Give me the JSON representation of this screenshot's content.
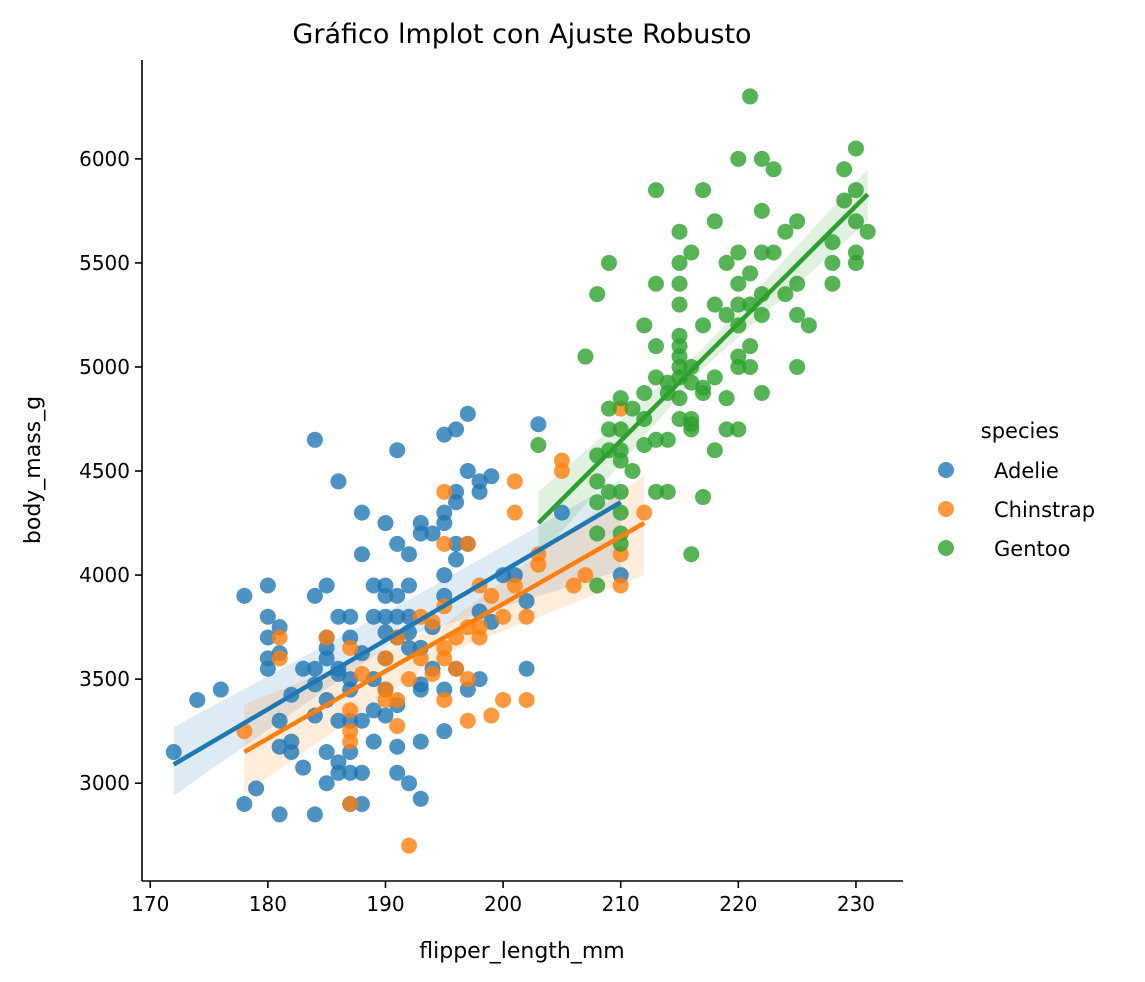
{
  "chart_data": {
    "type": "scatter",
    "title": "Gráfico lmplot con Ajuste Robusto",
    "xlabel": "flipper_length_mm",
    "ylabel": "body_mass_g",
    "xlim": [
      169.3,
      234
    ],
    "ylim": [
      2530,
      6475
    ],
    "xticks": [
      170,
      180,
      190,
      200,
      210,
      220,
      230
    ],
    "yticks": [
      3000,
      3500,
      4000,
      4500,
      5000,
      5500,
      6000
    ],
    "grid": false,
    "legend": {
      "title": "species",
      "placement": "right-center",
      "entries": [
        "Adelie",
        "Chinstrap",
        "Gentoo"
      ]
    },
    "series": [
      {
        "name": "Adelie",
        "color": "#1f77b4",
        "fit": {
          "x": [
            172,
            210
          ],
          "y": [
            3090,
            4350
          ]
        },
        "band": {
          "x": [
            172,
            191,
            210
          ],
          "lo": [
            2940,
            3690,
            4020
          ],
          "hi": [
            3270,
            3850,
            4460
          ]
        },
        "points": [
          [
            172,
            3150
          ],
          [
            174,
            3400
          ],
          [
            176,
            3450
          ],
          [
            178,
            3900
          ],
          [
            178,
            2900
          ],
          [
            179,
            2975
          ],
          [
            180,
            3950
          ],
          [
            180,
            3800
          ],
          [
            180,
            3700
          ],
          [
            180,
            3600
          ],
          [
            180,
            3550
          ],
          [
            181,
            3750
          ],
          [
            181,
            3625
          ],
          [
            181,
            3300
          ],
          [
            181,
            3175
          ],
          [
            181,
            2850
          ],
          [
            182,
            3425
          ],
          [
            182,
            3200
          ],
          [
            182,
            3150
          ],
          [
            183,
            3550
          ],
          [
            183,
            3075
          ],
          [
            184,
            4650
          ],
          [
            184,
            3900
          ],
          [
            184,
            3550
          ],
          [
            184,
            3475
          ],
          [
            184,
            3325
          ],
          [
            184,
            2850
          ],
          [
            185,
            3950
          ],
          [
            185,
            3700
          ],
          [
            185,
            3650
          ],
          [
            185,
            3600
          ],
          [
            185,
            3400
          ],
          [
            185,
            3150
          ],
          [
            185,
            3000
          ],
          [
            186,
            4450
          ],
          [
            186,
            3800
          ],
          [
            186,
            3550
          ],
          [
            186,
            3525
          ],
          [
            186,
            3300
          ],
          [
            186,
            3100
          ],
          [
            186,
            3050
          ],
          [
            187,
            3800
          ],
          [
            187,
            3700
          ],
          [
            187,
            3500
          ],
          [
            187,
            3450
          ],
          [
            187,
            3300
          ],
          [
            187,
            3150
          ],
          [
            187,
            3050
          ],
          [
            187,
            2900
          ],
          [
            188,
            4300
          ],
          [
            188,
            4100
          ],
          [
            188,
            3625
          ],
          [
            188,
            3300
          ],
          [
            188,
            3050
          ],
          [
            188,
            2900
          ],
          [
            189,
            3950
          ],
          [
            189,
            3800
          ],
          [
            189,
            3500
          ],
          [
            189,
            3350
          ],
          [
            189,
            3200
          ],
          [
            190,
            4250
          ],
          [
            190,
            3950
          ],
          [
            190,
            3900
          ],
          [
            190,
            3800
          ],
          [
            190,
            3725
          ],
          [
            190,
            3600
          ],
          [
            190,
            3450
          ],
          [
            190,
            3325
          ],
          [
            191,
            4600
          ],
          [
            191,
            4150
          ],
          [
            191,
            3900
          ],
          [
            191,
            3800
          ],
          [
            191,
            3700
          ],
          [
            191,
            3375
          ],
          [
            191,
            3175
          ],
          [
            191,
            3050
          ],
          [
            192,
            4100
          ],
          [
            192,
            3950
          ],
          [
            192,
            3800
          ],
          [
            192,
            3725
          ],
          [
            192,
            3650
          ],
          [
            192,
            3000
          ],
          [
            193,
            4250
          ],
          [
            193,
            4200
          ],
          [
            193,
            3650
          ],
          [
            193,
            3475
          ],
          [
            193,
            3450
          ],
          [
            193,
            3200
          ],
          [
            193,
            2925
          ],
          [
            194,
            4200
          ],
          [
            194,
            3750
          ],
          [
            194,
            3550
          ],
          [
            195,
            4675
          ],
          [
            195,
            4300
          ],
          [
            195,
            4250
          ],
          [
            195,
            4000
          ],
          [
            195,
            3900
          ],
          [
            195,
            3450
          ],
          [
            195,
            3250
          ],
          [
            196,
            4700
          ],
          [
            196,
            4400
          ],
          [
            196,
            4350
          ],
          [
            196,
            4150
          ],
          [
            196,
            4075
          ],
          [
            196,
            3550
          ],
          [
            197,
            4775
          ],
          [
            197,
            4500
          ],
          [
            197,
            4150
          ],
          [
            197,
            3450
          ],
          [
            198,
            4450
          ],
          [
            198,
            4400
          ],
          [
            198,
            3825
          ],
          [
            198,
            3500
          ],
          [
            199,
            4475
          ],
          [
            199,
            3775
          ],
          [
            200,
            4000
          ],
          [
            201,
            4000
          ],
          [
            202,
            3875
          ],
          [
            202,
            3550
          ],
          [
            203,
            4725
          ],
          [
            205,
            4300
          ],
          [
            210,
            4000
          ]
        ]
      },
      {
        "name": "Chinstrap",
        "color": "#ff7f0e",
        "fit": {
          "x": [
            178,
            212
          ],
          "y": [
            3150,
            4250
          ]
        },
        "band": {
          "x": [
            178,
            195,
            212
          ],
          "lo": [
            2950,
            3620,
            4000
          ],
          "hi": [
            3380,
            3760,
            4480
          ]
        },
        "points": [
          [
            178,
            3250
          ],
          [
            181,
            3700
          ],
          [
            181,
            3600
          ],
          [
            185,
            3700
          ],
          [
            187,
            3650
          ],
          [
            187,
            3350
          ],
          [
            187,
            3250
          ],
          [
            187,
            3200
          ],
          [
            187,
            2900
          ],
          [
            188,
            3525
          ],
          [
            190,
            3600
          ],
          [
            190,
            3450
          ],
          [
            190,
            3400
          ],
          [
            191,
            3700
          ],
          [
            191,
            3400
          ],
          [
            191,
            3275
          ],
          [
            192,
            3500
          ],
          [
            192,
            2700
          ],
          [
            193,
            3800
          ],
          [
            193,
            3600
          ],
          [
            194,
            3775
          ],
          [
            194,
            3525
          ],
          [
            195,
            4400
          ],
          [
            195,
            4150
          ],
          [
            195,
            3850
          ],
          [
            195,
            3650
          ],
          [
            195,
            3600
          ],
          [
            195,
            3400
          ],
          [
            196,
            3700
          ],
          [
            196,
            3550
          ],
          [
            197,
            4150
          ],
          [
            197,
            3750
          ],
          [
            197,
            3500
          ],
          [
            197,
            3300
          ],
          [
            198,
            3950
          ],
          [
            198,
            3750
          ],
          [
            198,
            3700
          ],
          [
            199,
            3900
          ],
          [
            199,
            3325
          ],
          [
            200,
            3800
          ],
          [
            200,
            3400
          ],
          [
            201,
            4450
          ],
          [
            201,
            4300
          ],
          [
            201,
            3950
          ],
          [
            202,
            3800
          ],
          [
            202,
            3400
          ],
          [
            203,
            4100
          ],
          [
            203,
            4050
          ],
          [
            205,
            4550
          ],
          [
            205,
            4500
          ],
          [
            206,
            3950
          ],
          [
            207,
            4000
          ],
          [
            210,
            4800
          ],
          [
            210,
            4100
          ],
          [
            210,
            3950
          ],
          [
            212,
            4300
          ]
        ]
      },
      {
        "name": "Gentoo",
        "color": "#2ca02c",
        "fit": {
          "x": [
            203,
            231
          ],
          "y": [
            4250,
            5830
          ]
        },
        "band": {
          "x": [
            203,
            217,
            231
          ],
          "lo": [
            4080,
            4990,
            5700
          ],
          "hi": [
            4400,
            5090,
            5950
          ]
        },
        "points": [
          [
            203,
            4625
          ],
          [
            207,
            5050
          ],
          [
            208,
            5350
          ],
          [
            208,
            4575
          ],
          [
            208,
            4450
          ],
          [
            208,
            4350
          ],
          [
            208,
            4200
          ],
          [
            208,
            3950
          ],
          [
            209,
            5500
          ],
          [
            209,
            4800
          ],
          [
            209,
            4700
          ],
          [
            209,
            4600
          ],
          [
            209,
            4400
          ],
          [
            210,
            4850
          ],
          [
            210,
            4700
          ],
          [
            210,
            4600
          ],
          [
            210,
            4550
          ],
          [
            210,
            4400
          ],
          [
            210,
            4300
          ],
          [
            210,
            4200
          ],
          [
            210,
            4150
          ],
          [
            211,
            4800
          ],
          [
            211,
            4500
          ],
          [
            212,
            5200
          ],
          [
            212,
            4875
          ],
          [
            212,
            4750
          ],
          [
            212,
            4625
          ],
          [
            213,
            5850
          ],
          [
            213,
            5400
          ],
          [
            213,
            5100
          ],
          [
            213,
            4950
          ],
          [
            213,
            4650
          ],
          [
            213,
            4400
          ],
          [
            214,
            4925
          ],
          [
            214,
            4875
          ],
          [
            214,
            4650
          ],
          [
            214,
            4400
          ],
          [
            215,
            5650
          ],
          [
            215,
            5500
          ],
          [
            215,
            5400
          ],
          [
            215,
            5300
          ],
          [
            215,
            5150
          ],
          [
            215,
            5100
          ],
          [
            215,
            5050
          ],
          [
            215,
            5000
          ],
          [
            215,
            4950
          ],
          [
            215,
            4850
          ],
          [
            215,
            4750
          ],
          [
            216,
            5550
          ],
          [
            216,
            5000
          ],
          [
            216,
            4925
          ],
          [
            216,
            4750
          ],
          [
            216,
            4725
          ],
          [
            216,
            4700
          ],
          [
            216,
            4100
          ],
          [
            217,
            5850
          ],
          [
            217,
            5200
          ],
          [
            217,
            4900
          ],
          [
            217,
            4875
          ],
          [
            217,
            4375
          ],
          [
            218,
            5700
          ],
          [
            218,
            5300
          ],
          [
            218,
            4950
          ],
          [
            218,
            4600
          ],
          [
            219,
            5500
          ],
          [
            219,
            5250
          ],
          [
            219,
            4850
          ],
          [
            219,
            4700
          ],
          [
            220,
            6000
          ],
          [
            220,
            5550
          ],
          [
            220,
            5400
          ],
          [
            220,
            5300
          ],
          [
            220,
            5200
          ],
          [
            220,
            5050
          ],
          [
            220,
            5000
          ],
          [
            220,
            4700
          ],
          [
            221,
            6300
          ],
          [
            221,
            5450
          ],
          [
            221,
            5300
          ],
          [
            221,
            5100
          ],
          [
            221,
            5000
          ],
          [
            222,
            6000
          ],
          [
            222,
            5750
          ],
          [
            222,
            5550
          ],
          [
            222,
            5350
          ],
          [
            222,
            5250
          ],
          [
            222,
            4875
          ],
          [
            223,
            5950
          ],
          [
            223,
            5550
          ],
          [
            224,
            5650
          ],
          [
            224,
            5350
          ],
          [
            225,
            5700
          ],
          [
            225,
            5400
          ],
          [
            225,
            5250
          ],
          [
            225,
            5000
          ],
          [
            226,
            5200
          ],
          [
            228,
            5600
          ],
          [
            228,
            5500
          ],
          [
            228,
            5400
          ],
          [
            229,
            5950
          ],
          [
            229,
            5800
          ],
          [
            230,
            6050
          ],
          [
            230,
            5850
          ],
          [
            230,
            5700
          ],
          [
            230,
            5550
          ],
          [
            230,
            5500
          ],
          [
            231,
            5650
          ]
        ]
      }
    ]
  }
}
